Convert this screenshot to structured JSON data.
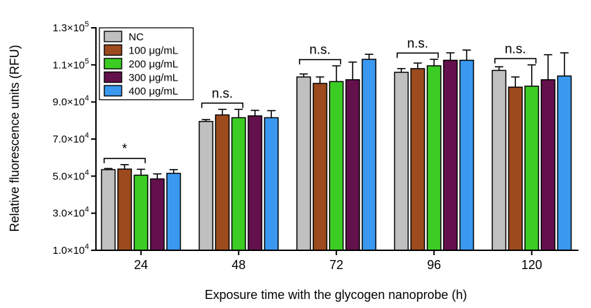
{
  "chart_data": {
    "type": "bar",
    "xlabel": "Exposure time with the glycogen nanoprobe (h)",
    "ylabel": "Relative fluorescence units (RFU)",
    "ylim": [
      10000,
      130000
    ],
    "yticks": [
      10000,
      30000,
      50000,
      70000,
      90000,
      110000,
      130000
    ],
    "ytick_labels": [
      {
        "mantissa": "1.0×10",
        "exp": "4"
      },
      {
        "mantissa": "3.0×10",
        "exp": "4"
      },
      {
        "mantissa": "5.0×10",
        "exp": "4"
      },
      {
        "mantissa": "7.0×10",
        "exp": "4"
      },
      {
        "mantissa": "9.0×10",
        "exp": "4"
      },
      {
        "mantissa": "1.1×10",
        "exp": "5"
      },
      {
        "mantissa": "1.3×10",
        "exp": "5"
      }
    ],
    "categories": [
      "24",
      "48",
      "72",
      "96",
      "120"
    ],
    "legend_position": "top-left",
    "series": [
      {
        "name": "NC",
        "color": "#c0c0c0",
        "values": [
          53500,
          79500,
          103500,
          106000,
          107000
        ],
        "errors": [
          600,
          1000,
          1600,
          2000,
          2000
        ]
      },
      {
        "name": "100 μg/mL",
        "color": "#9c4a1e",
        "values": [
          53800,
          83000,
          100000,
          108000,
          98000
        ],
        "errors": [
          2400,
          3000,
          3500,
          3000,
          5500
        ]
      },
      {
        "name": "200 μg/mL",
        "color": "#3ccd24",
        "values": [
          50500,
          81500,
          101000,
          109500,
          98500
        ],
        "errors": [
          3200,
          4500,
          8500,
          3500,
          11500
        ]
      },
      {
        "name": "300 μg/mL",
        "color": "#64104c",
        "values": [
          48500,
          82500,
          102000,
          112500,
          102000
        ],
        "errors": [
          2700,
          3000,
          9500,
          4000,
          13500
        ]
      },
      {
        "name": "400 μg/mL",
        "color": "#3a98f0",
        "values": [
          51500,
          81500,
          113000,
          112500,
          104000
        ],
        "errors": [
          2000,
          3800,
          2700,
          5500,
          12500
        ]
      }
    ],
    "annotations": [
      {
        "category": "24",
        "text": "*",
        "from_series": 0,
        "to_series": 2
      },
      {
        "category": "48",
        "text": "n.s.",
        "from_series": 0,
        "to_series": 2
      },
      {
        "category": "72",
        "text": "n.s.",
        "from_series": 0,
        "to_series": 2
      },
      {
        "category": "96",
        "text": "n.s.",
        "from_series": 0,
        "to_series": 2
      },
      {
        "category": "120",
        "text": "n.s.",
        "from_series": 0,
        "to_series": 2
      }
    ]
  }
}
